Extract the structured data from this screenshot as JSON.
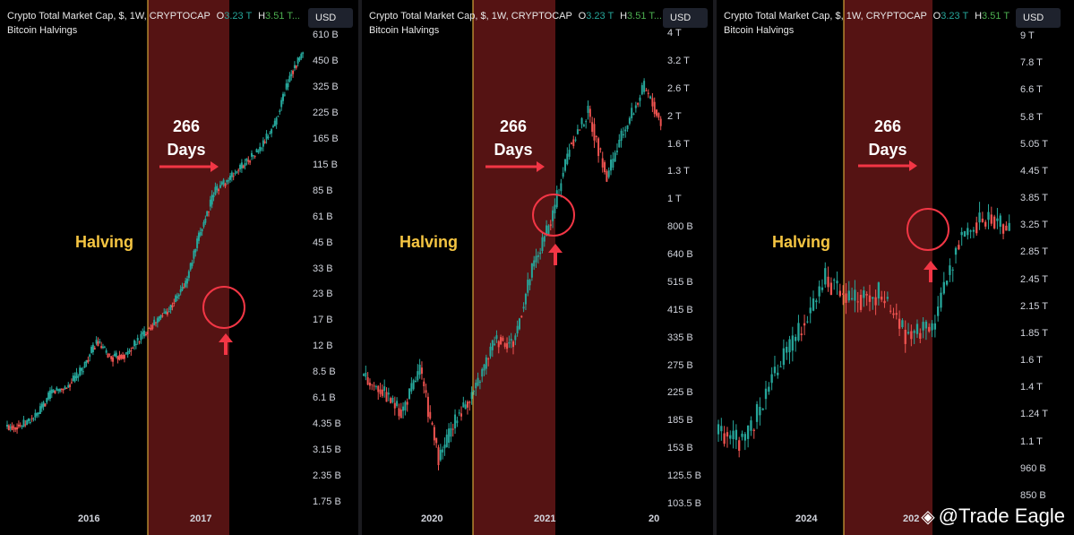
{
  "colors": {
    "up": "#26a69a",
    "down": "#ef5350",
    "band": "#5a1414",
    "halving_line": "#f5c542",
    "circle": "#f23645",
    "label": "#f5c542"
  },
  "watermark": "@Trade Eagle",
  "panels": [
    {
      "header": {
        "pre": "Crypto Total Market Cap, $, 1W, CRYPTOCAP",
        "o_label": "O",
        "o_val": "3.23 T",
        "h_label": "H",
        "h_val": "3.51 T..."
      },
      "subtitle": "Bitcoin Halvings",
      "currency": "USD",
      "annot": {
        "days_value": "266",
        "days_unit": "Days",
        "halving": "Halving"
      },
      "y_ticks": [
        "610 B",
        "450 B",
        "325 B",
        "225 B",
        "165 B",
        "115 B",
        "85 B",
        "61 B",
        "45 B",
        "33 B",
        "23 B",
        "17 B",
        "12 B",
        "8.5 B",
        "6.1 B",
        "4.35 B",
        "3.15 B",
        "2.35 B",
        "1.75 B"
      ],
      "x_ticks": [
        "2016",
        "2017"
      ]
    },
    {
      "header": {
        "pre": "Crypto Total Market Cap, $, 1W, CRYPTOCAP",
        "o_label": "O",
        "o_val": "3.23 T",
        "h_label": "H",
        "h_val": "3.51 T..."
      },
      "subtitle": "Bitcoin Halvings",
      "currency": "USD",
      "annot": {
        "days_value": "266",
        "days_unit": "Days",
        "halving": "Halving"
      },
      "y_ticks": [
        "4 T",
        "3.2 T",
        "2.6 T",
        "2 T",
        "1.6 T",
        "1.3 T",
        "1 T",
        "800 B",
        "640 B",
        "515 B",
        "415 B",
        "335 B",
        "275 B",
        "225 B",
        "185 B",
        "153 B",
        "125.5 B",
        "103.5 B"
      ],
      "x_ticks": [
        "2020",
        "2021",
        "20"
      ]
    },
    {
      "header": {
        "pre": "Crypto Total Market Cap, $, 1W, CRYPTOCAP",
        "o_label": "O",
        "o_val": "3.23 T",
        "h_label": "H",
        "h_val": "3.51 T"
      },
      "subtitle": "Bitcoin Halvings",
      "currency": "USD",
      "annot": {
        "days_value": "266",
        "days_unit": "Days",
        "halving": "Halving"
      },
      "y_ticks": [
        "9 T",
        "7.8 T",
        "6.6 T",
        "5.8 T",
        "5.05 T",
        "4.45 T",
        "3.85 T",
        "3.25 T",
        "2.85 T",
        "2.45 T",
        "2.15 T",
        "1.85 T",
        "1.6 T",
        "1.4 T",
        "1.24 T",
        "1.1 T",
        "960 B",
        "850 B"
      ],
      "x_ticks": [
        "2024",
        "202"
      ]
    }
  ],
  "chart_data": [
    {
      "type": "line",
      "title": "Crypto Total Market Cap, $, 1W, CRYPTOCAP",
      "subtitle": "Bitcoin Halvings",
      "scale": "log",
      "x": [
        "2015-07",
        "2015-09",
        "2015-11",
        "2016-01",
        "2016-03",
        "2016-05",
        "2016-06",
        "2016-08",
        "2016-10",
        "2016-12",
        "2017-01",
        "2017-03",
        "2017-04",
        "2017-05",
        "2017-06",
        "2017-08",
        "2017-09",
        "2017-10",
        "2017-11",
        "2017-12",
        "2018-01"
      ],
      "values": [
        4.3,
        4.4,
        5.0,
        6.8,
        7.2,
        9.0,
        13.0,
        10.5,
        11.0,
        14.0,
        17.0,
        20.5,
        28.0,
        55.0,
        95.0,
        110.0,
        135.0,
        160.0,
        225.0,
        420.0,
        580.0
      ],
      "ylabel": "",
      "xlabel": ""
    },
    {
      "type": "line",
      "title": "Crypto Total Market Cap, $, 1W, CRYPTOCAP",
      "subtitle": "Bitcoin Halvings",
      "scale": "log",
      "x": [
        "2019-08",
        "2019-10",
        "2019-12",
        "2020-02",
        "2020-03",
        "2020-04",
        "2020-06",
        "2020-08",
        "2020-10",
        "2020-12",
        "2021-01",
        "2021-03",
        "2021-05",
        "2021-07",
        "2021-09",
        "2021-11",
        "2022-01"
      ],
      "values": [
        270,
        245,
        205,
        290,
        140,
        200,
        250,
        370,
        360,
        650,
        950,
        1750,
        2300,
        1350,
        2050,
        2800,
        2050
      ],
      "ylabel": "",
      "xlabel": ""
    },
    {
      "type": "line",
      "title": "Crypto Total Market Cap, $, 1W, CRYPTOCAP",
      "subtitle": "Bitcoin Halvings",
      "scale": "log",
      "x": [
        "2023-08",
        "2023-10",
        "2023-12",
        "2024-02",
        "2024-03",
        "2024-04",
        "2024-06",
        "2024-08",
        "2024-09",
        "2024-11",
        "2024-12",
        "2025-01"
      ],
      "values": [
        1150,
        1090,
        1550,
        1950,
        2600,
        2300,
        2400,
        1950,
        2000,
        3200,
        3600,
        3300
      ],
      "ylabel": "",
      "xlabel": ""
    }
  ]
}
